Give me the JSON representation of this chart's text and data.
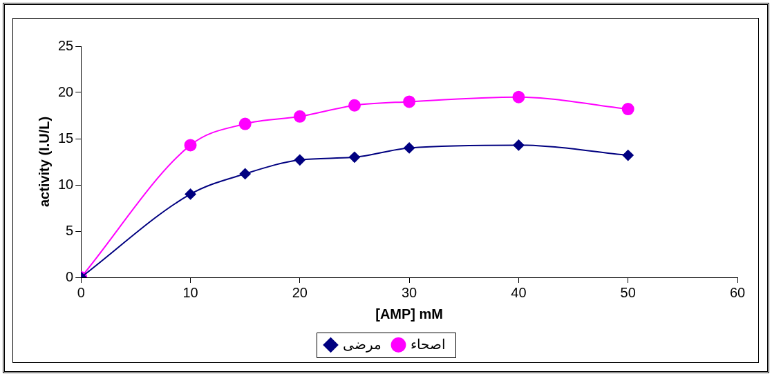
{
  "chart_data": {
    "type": "line",
    "xlabel": "[AMP] mM",
    "ylabel": "activity (I.U/L)",
    "x": [
      0,
      10,
      15,
      20,
      25,
      30,
      40,
      50
    ],
    "series": [
      {
        "name": "مرضى",
        "color": "#000080",
        "marker": "diamond",
        "values": [
          0,
          9,
          11.2,
          12.7,
          13,
          14,
          14.3,
          13.2
        ]
      },
      {
        "name": "اصحاء",
        "color": "#ff00ff",
        "marker": "circle",
        "values": [
          0,
          14.3,
          16.6,
          17.4,
          18.6,
          19,
          19.5,
          18.2
        ]
      }
    ],
    "xlim": [
      0,
      60
    ],
    "xticks": [
      0,
      10,
      20,
      30,
      40,
      50,
      60
    ],
    "ylim": [
      0,
      25
    ],
    "yticks": [
      0,
      5,
      10,
      15,
      20,
      25
    ],
    "grid": false,
    "legend": "bottom"
  }
}
